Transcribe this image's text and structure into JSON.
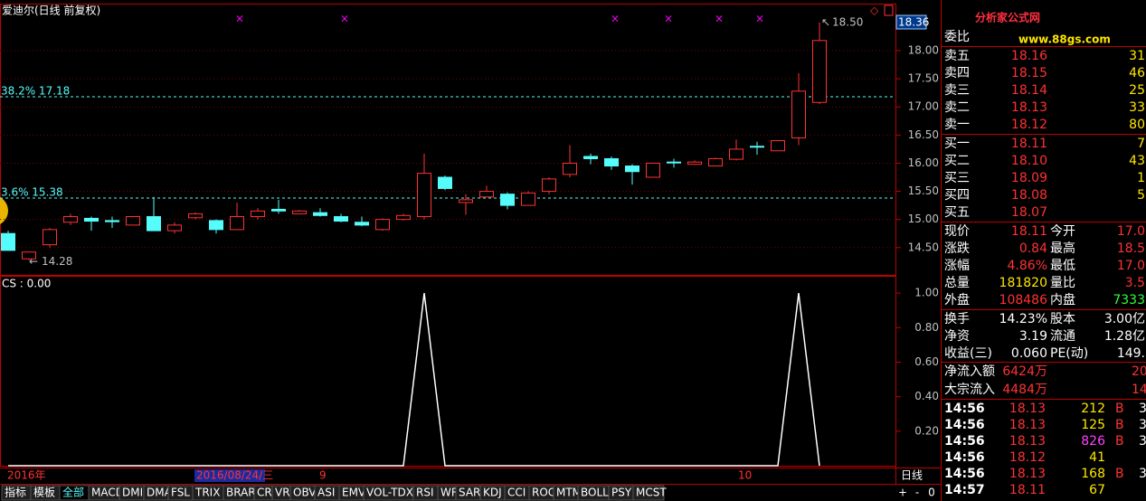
{
  "window": {
    "title": "爱迪尔(日线 前复权)",
    "price_box": "18.36",
    "indicator_label": "CS : 0.00",
    "high_label": "18.50",
    "low_label": "14.28",
    "fib_lines": [
      {
        "label": "38.2% 17.18",
        "value": 17.18
      },
      {
        "label": "3.6% 15.38",
        "value": 15.38
      }
    ],
    "date_labels": [
      "2016年",
      "2016/08/24/三",
      "9",
      "10"
    ],
    "period": "日线",
    "tabs": [
      "指标",
      "模板",
      "全部",
      "MACD",
      "DMI",
      "DMA",
      "FSL",
      "TRIX",
      "BRAR",
      "CR",
      "VR",
      "OBV",
      "ASI",
      "EMV",
      "VOL-TDX",
      "RSI",
      "WR",
      "SAR",
      "KDJ",
      "CCI",
      "ROC",
      "MTM",
      "BOLL",
      "PSY",
      "MCST"
    ],
    "tab_buttons": [
      "+",
      "-",
      "0"
    ],
    "logo": "分析家公式网",
    "logo_url": "www.88gs.com"
  },
  "chart_data": [
    {
      "type": "candlestick",
      "ylim": [
        14.03,
        18.82
      ],
      "yticks": [
        {
          "value": 14.5,
          "label": "14.50"
        },
        {
          "value": 15,
          "label": "15.00"
        },
        {
          "value": 15.5,
          "label": "15.50"
        },
        {
          "value": 16,
          "label": "16.00"
        },
        {
          "value": 16.5,
          "label": "16.50"
        },
        {
          "value": 17,
          "label": "17.00"
        },
        {
          "value": 17.5,
          "label": "17.50"
        },
        {
          "value": 18,
          "label": "18.00"
        }
      ],
      "up_color": "#ff3232",
      "down_color": "#54fcfc",
      "open": [
        14.75,
        14.3,
        14.55,
        14.95,
        15.02,
        14.98,
        14.9,
        15.05,
        14.8,
        15.03,
        14.98,
        14.82,
        15.05,
        15.18,
        15.1,
        15.12,
        15.05,
        14.95,
        14.82,
        15.0,
        15.05,
        15.75,
        15.3,
        15.4,
        15.45,
        15.25,
        15.5,
        15.8,
        16.12,
        16.08,
        15.95,
        15.75,
        16.02,
        15.98,
        15.95,
        16.07,
        16.3,
        16.22,
        16.45,
        17.08
      ],
      "high": [
        14.8,
        14.42,
        14.85,
        15.1,
        15.05,
        15.05,
        15.05,
        15.4,
        14.95,
        15.13,
        15.0,
        15.3,
        15.2,
        15.35,
        15.17,
        15.2,
        15.1,
        15.05,
        15.02,
        15.1,
        16.17,
        15.78,
        15.45,
        15.6,
        15.48,
        15.5,
        15.75,
        16.32,
        16.17,
        16.12,
        15.98,
        16.0,
        16.08,
        16.05,
        16.1,
        16.42,
        16.38,
        16.4,
        17.6,
        18.5
      ],
      "low": [
        14.45,
        14.28,
        14.5,
        14.9,
        14.8,
        14.85,
        14.9,
        14.8,
        14.75,
        15.0,
        14.75,
        14.82,
        15.0,
        15.1,
        15.1,
        15.05,
        14.95,
        14.88,
        14.8,
        14.98,
        15.0,
        15.52,
        15.08,
        15.4,
        15.18,
        15.25,
        15.45,
        15.75,
        15.98,
        15.88,
        15.62,
        15.75,
        15.92,
        15.97,
        15.95,
        16.05,
        16.15,
        16.22,
        16.32,
        17.05
      ],
      "close": [
        14.45,
        14.42,
        14.82,
        15.05,
        14.97,
        14.96,
        15.05,
        14.8,
        14.9,
        15.1,
        14.82,
        15.05,
        15.15,
        15.15,
        15.15,
        15.07,
        14.97,
        14.9,
        15.0,
        15.07,
        15.82,
        15.55,
        15.35,
        15.5,
        15.25,
        15.47,
        15.72,
        16.0,
        16.08,
        15.95,
        15.85,
        16.0,
        16.01,
        16.02,
        16.08,
        16.25,
        16.29,
        16.4,
        17.28,
        18.18
      ]
    },
    {
      "type": "line",
      "color": "#ffffff",
      "ylim": [
        0,
        1.1
      ],
      "yticks": [
        {
          "value": 0.2,
          "label": "0.20"
        },
        {
          "value": 0.4,
          "label": "0.40"
        },
        {
          "value": 0.6,
          "label": "0.60"
        },
        {
          "value": 0.8,
          "label": "0.80"
        },
        {
          "value": 1,
          "label": "1.00"
        }
      ],
      "values": [
        0,
        0,
        0,
        0,
        0,
        0,
        0,
        0,
        0,
        0,
        0,
        0,
        0,
        0,
        0,
        0,
        0,
        0,
        0,
        0,
        1,
        0,
        0,
        0,
        0,
        0,
        0,
        0,
        0,
        0,
        0,
        0,
        0,
        0,
        0,
        0,
        0,
        0,
        1,
        0
      ]
    }
  ],
  "quote": {
    "header": "委比",
    "book": [
      [
        "卖五",
        "18.16",
        "31"
      ],
      [
        "卖四",
        "18.15",
        "46"
      ],
      [
        "卖三",
        "18.14",
        "25"
      ],
      [
        "卖二",
        "18.13",
        "33"
      ],
      [
        "卖一",
        "18.12",
        "80"
      ],
      [
        "买一",
        "18.11",
        "7"
      ],
      [
        "买二",
        "18.10",
        "43"
      ],
      [
        "买三",
        "18.09",
        "1"
      ],
      [
        "买四",
        "18.08",
        "5"
      ],
      [
        "买五",
        "18.07"
      ]
    ],
    "stats": [
      [
        "现价",
        "18.11",
        "今开",
        "17.0"
      ],
      [
        "涨跌",
        "0.84",
        "最高",
        "18.5"
      ],
      [
        "涨幅",
        "4.86%",
        "最低",
        "17.0"
      ],
      [
        "总量",
        "181820",
        "量比",
        "3.5"
      ],
      [
        "外盘",
        "108486",
        "内盘",
        "7333"
      ],
      [
        "换手",
        "14.23%",
        "股本",
        "3.00亿"
      ],
      [
        "净资",
        "3.19",
        "流通",
        "1.28亿"
      ],
      [
        "收益(三)",
        "0.060",
        "PE(动)",
        "149."
      ],
      [
        "净流入额",
        "6424万",
        "20"
      ],
      [
        "大宗流入",
        "4484万",
        "14"
      ]
    ],
    "ticks": [
      [
        "14:56",
        "18.13",
        "212",
        "B",
        "3"
      ],
      [
        "14:56",
        "18.13",
        "125",
        "B",
        "3"
      ],
      [
        "14:56",
        "18.13",
        "826",
        "B",
        "3"
      ],
      [
        "14:56",
        "18.12",
        "41"
      ],
      [
        "14:56",
        "18.13",
        "168",
        "B",
        "3"
      ],
      [
        "14:57",
        "18.11",
        "67"
      ]
    ]
  }
}
